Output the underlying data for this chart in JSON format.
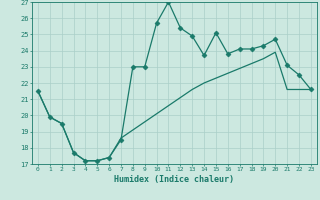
{
  "xlabel": "Humidex (Indice chaleur)",
  "x": [
    0,
    1,
    2,
    3,
    4,
    5,
    6,
    7,
    8,
    9,
    10,
    11,
    12,
    13,
    14,
    15,
    16,
    17,
    18,
    19,
    20,
    21,
    22,
    23
  ],
  "y_upper": [
    21.5,
    19.9,
    19.5,
    17.7,
    17.2,
    17.2,
    17.4,
    18.5,
    23.0,
    23.0,
    25.7,
    27.0,
    25.4,
    24.9,
    23.7,
    25.1,
    23.8,
    24.1,
    24.1,
    24.3,
    24.7,
    23.1,
    22.5,
    21.6
  ],
  "y_lower": [
    21.5,
    19.9,
    19.5,
    17.7,
    17.2,
    17.2,
    17.4,
    18.6,
    19.1,
    19.6,
    20.1,
    20.6,
    21.1,
    21.6,
    22.0,
    22.3,
    22.6,
    22.9,
    23.2,
    23.5,
    23.9,
    21.6,
    21.6,
    21.6
  ],
  "ylim": [
    17,
    27
  ],
  "xlim_min": -0.5,
  "xlim_max": 23.5,
  "yticks": [
    17,
    18,
    19,
    20,
    21,
    22,
    23,
    24,
    25,
    26,
    27
  ],
  "xticks": [
    0,
    1,
    2,
    3,
    4,
    5,
    6,
    7,
    8,
    9,
    10,
    11,
    12,
    13,
    14,
    15,
    16,
    17,
    18,
    19,
    20,
    21,
    22,
    23
  ],
  "line_color": "#1a7a6a",
  "bg_color": "#cce8e0",
  "grid_color": "#aacfc8",
  "marker": "D",
  "marker_size": 2.5,
  "linewidth": 0.9
}
